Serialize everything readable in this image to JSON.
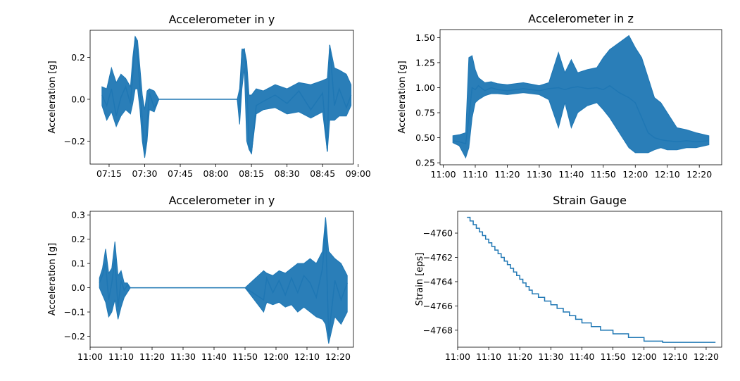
{
  "chart_data": [
    {
      "type": "line",
      "title": "Accelerometer in y",
      "xlabel": "",
      "ylabel": "Acceleration [g]",
      "x_unit": "time",
      "xlim": [
        "07:07",
        "08:58"
      ],
      "ylim": [
        -0.31,
        0.33
      ],
      "x_ticks": [
        "07:15",
        "07:30",
        "07:45",
        "08:00",
        "08:15",
        "08:30",
        "08:45",
        "09:00"
      ],
      "y_ticks": [
        -0.2,
        0.0,
        0.2
      ],
      "y_tick_labels": [
        "−0.2",
        "0.0",
        "0.2"
      ],
      "grid": false,
      "color": "#1f77b4",
      "series": [
        {
          "x": [
            "07:12",
            "07:14",
            "07:16",
            "07:18",
            "07:20",
            "07:22",
            "07:24",
            "07:25",
            "07:26",
            "07:27",
            "07:28",
            "07:29",
            "07:30",
            "07:31",
            "07:32",
            "07:34",
            "07:36",
            "07:45",
            "08:00",
            "08:09",
            "08:10",
            "08:11",
            "08:12",
            "08:13",
            "08:14",
            "08:15",
            "08:17",
            "08:20",
            "08:25",
            "08:30",
            "08:35",
            "08:40",
            "08:45",
            "08:47",
            "08:48",
            "08:50",
            "08:52",
            "08:55",
            "08:57"
          ],
          "y": [
            0.02,
            -0.03,
            0.05,
            -0.08,
            0.01,
            0.06,
            -0.02,
            0.12,
            0.3,
            0.22,
            0.05,
            -0.1,
            -0.27,
            -0.12,
            0.03,
            -0.04,
            0.0,
            0.0,
            0.0,
            0.0,
            -0.05,
            0.23,
            0.24,
            0.1,
            -0.22,
            -0.26,
            -0.03,
            -0.01,
            0.02,
            -0.02,
            0.04,
            -0.05,
            0.03,
            -0.25,
            0.26,
            -0.03,
            0.05,
            -0.04,
            0.02
          ],
          "min": [
            -0.03,
            -0.1,
            -0.06,
            -0.13,
            -0.08,
            -0.05,
            -0.07,
            -0.02,
            0.05,
            0.05,
            -0.05,
            -0.2,
            -0.28,
            -0.2,
            -0.05,
            -0.06,
            0.0,
            0.0,
            0.0,
            0.0,
            -0.12,
            0.05,
            0.15,
            -0.2,
            -0.24,
            -0.26,
            -0.07,
            -0.05,
            -0.04,
            -0.07,
            -0.06,
            -0.09,
            -0.06,
            -0.25,
            -0.1,
            -0.1,
            -0.08,
            -0.08,
            -0.03
          ],
          "max": [
            0.06,
            0.05,
            0.15,
            0.08,
            0.12,
            0.1,
            0.06,
            0.2,
            0.3,
            0.28,
            0.15,
            0.02,
            -0.05,
            0.04,
            0.05,
            0.04,
            0.0,
            0.0,
            0.0,
            0.0,
            0.05,
            0.24,
            0.24,
            0.18,
            0.02,
            0.02,
            0.05,
            0.04,
            0.07,
            0.05,
            0.08,
            0.07,
            0.09,
            0.1,
            0.26,
            0.15,
            0.14,
            0.12,
            0.07
          ]
        }
      ]
    },
    {
      "type": "line",
      "title": "Accelerometer in z",
      "xlabel": "",
      "ylabel": "Acceleration [g]",
      "x_unit": "time",
      "xlim": [
        "10:59",
        "12:27"
      ],
      "ylim": [
        0.23,
        1.58
      ],
      "x_ticks": [
        "11:00",
        "11:10",
        "11:20",
        "11:30",
        "11:40",
        "11:50",
        "12:00",
        "12:10",
        "12:20"
      ],
      "y_ticks": [
        0.25,
        0.5,
        0.75,
        1.0,
        1.25,
        1.5
      ],
      "y_tick_labels": [
        "0.25",
        "0.50",
        "0.75",
        "1.00",
        "1.25",
        "1.50"
      ],
      "grid": false,
      "color": "#1f77b4",
      "series": [
        {
          "x": [
            "11:03",
            "11:05",
            "11:07",
            "11:08",
            "11:09",
            "11:10",
            "11:11",
            "11:13",
            "11:15",
            "11:17",
            "11:20",
            "11:25",
            "11:30",
            "11:33",
            "11:36",
            "11:38",
            "11:40",
            "11:42",
            "11:45",
            "11:48",
            "11:50",
            "11:52",
            "11:55",
            "11:58",
            "12:00",
            "12:02",
            "12:04",
            "12:06",
            "12:08",
            "12:10",
            "12:13",
            "12:16",
            "12:19",
            "12:23"
          ],
          "y": [
            0.47,
            0.46,
            0.44,
            0.7,
            1.0,
            0.98,
            1.02,
            0.97,
            1.0,
            0.98,
            0.97,
            0.99,
            0.97,
            0.99,
            1.0,
            0.98,
            1.0,
            1.01,
            0.99,
            1.0,
            0.98,
            1.02,
            0.95,
            0.9,
            0.85,
            0.7,
            0.55,
            0.5,
            0.48,
            0.47,
            0.46,
            0.47,
            0.46,
            0.47
          ],
          "min": [
            0.45,
            0.42,
            0.3,
            0.4,
            0.7,
            0.85,
            0.88,
            0.92,
            0.94,
            0.94,
            0.93,
            0.95,
            0.93,
            0.88,
            0.6,
            0.85,
            0.6,
            0.75,
            0.82,
            0.85,
            0.78,
            0.7,
            0.55,
            0.4,
            0.35,
            0.35,
            0.35,
            0.38,
            0.4,
            0.38,
            0.38,
            0.4,
            0.4,
            0.43
          ],
          "max": [
            0.52,
            0.53,
            0.55,
            1.3,
            1.32,
            1.18,
            1.1,
            1.05,
            1.06,
            1.04,
            1.03,
            1.05,
            1.02,
            1.05,
            1.35,
            1.15,
            1.28,
            1.15,
            1.18,
            1.2,
            1.3,
            1.38,
            1.45,
            1.52,
            1.4,
            1.3,
            1.1,
            0.9,
            0.85,
            0.75,
            0.6,
            0.58,
            0.55,
            0.52
          ]
        }
      ]
    },
    {
      "type": "line",
      "title": "Accelerometer in y",
      "xlabel": "",
      "ylabel": "Acceleration [g]",
      "x_unit": "time",
      "xlim": [
        "11:00",
        "12:25"
      ],
      "ylim": [
        -0.245,
        0.315
      ],
      "x_ticks": [
        "11:00",
        "11:10",
        "11:20",
        "11:30",
        "11:40",
        "11:50",
        "12:00",
        "12:10",
        "12:20"
      ],
      "y_ticks": [
        -0.2,
        -0.1,
        0.0,
        0.1,
        0.2,
        0.3
      ],
      "y_tick_labels": [
        "−0.2",
        "−0.1",
        "0.0",
        "0.1",
        "0.2",
        "0.3"
      ],
      "grid": false,
      "color": "#1f77b4",
      "series": [
        {
          "x": [
            "11:03",
            "11:04",
            "11:05",
            "11:06",
            "11:07",
            "11:08",
            "11:09",
            "11:10",
            "11:11",
            "11:12",
            "11:13",
            "11:20",
            "11:30",
            "11:40",
            "11:50",
            "11:56",
            "11:57",
            "11:59",
            "12:01",
            "12:03",
            "12:05",
            "12:07",
            "12:09",
            "12:11",
            "12:13",
            "12:15",
            "12:16",
            "12:17",
            "12:19",
            "12:21",
            "12:23"
          ],
          "y": [
            0.02,
            0.05,
            0.1,
            -0.05,
            0.02,
            0.12,
            -0.08,
            0.03,
            -0.01,
            0.01,
            0.0,
            0.0,
            0.0,
            0.0,
            0.0,
            -0.05,
            0.04,
            -0.02,
            0.03,
            -0.03,
            0.04,
            -0.02,
            0.05,
            0.02,
            -0.04,
            0.08,
            0.25,
            -0.2,
            0.03,
            -0.05,
            0.02
          ],
          "min": [
            0.0,
            -0.03,
            -0.06,
            -0.12,
            -0.1,
            -0.05,
            -0.13,
            -0.08,
            -0.04,
            -0.02,
            0.0,
            0.0,
            0.0,
            0.0,
            0.0,
            -0.1,
            -0.06,
            -0.07,
            -0.06,
            -0.08,
            -0.07,
            -0.1,
            -0.08,
            -0.1,
            -0.12,
            -0.13,
            -0.15,
            -0.23,
            -0.12,
            -0.15,
            -0.1
          ],
          "max": [
            0.04,
            0.08,
            0.16,
            0.06,
            0.08,
            0.19,
            0.05,
            0.07,
            0.02,
            0.02,
            0.0,
            0.0,
            0.0,
            0.0,
            0.0,
            0.07,
            0.06,
            0.05,
            0.07,
            0.06,
            0.08,
            0.1,
            0.1,
            0.12,
            0.1,
            0.15,
            0.29,
            0.15,
            0.12,
            0.1,
            0.05
          ]
        }
      ]
    },
    {
      "type": "line",
      "title": "Strain Gauge",
      "xlabel": "",
      "ylabel": "Strain [eps]",
      "x_unit": "time",
      "xlim": [
        "11:00",
        "12:25"
      ],
      "ylim": [
        -4769.4,
        -4758.2
      ],
      "x_ticks": [
        "11:00",
        "11:10",
        "11:20",
        "11:30",
        "11:40",
        "11:50",
        "12:00",
        "12:10",
        "12:20"
      ],
      "y_ticks": [
        -4760,
        -4762,
        -4764,
        -4766,
        -4768
      ],
      "y_tick_labels": [
        "−4760",
        "−4762",
        "−4764",
        "−4766",
        "−4768"
      ],
      "grid": false,
      "color": "#1f77b4",
      "step": true,
      "series": [
        {
          "x": [
            "11:03",
            "11:04",
            "11:05",
            "11:06",
            "11:07",
            "11:08",
            "11:09",
            "11:10",
            "11:11",
            "11:12",
            "11:13",
            "11:14",
            "11:15",
            "11:16",
            "11:17",
            "11:18",
            "11:19",
            "11:20",
            "11:21",
            "11:22",
            "11:23",
            "11:24",
            "11:26",
            "11:28",
            "11:30",
            "11:32",
            "11:34",
            "11:36",
            "11:38",
            "11:40",
            "11:43",
            "11:46",
            "11:50",
            "11:55",
            "12:00",
            "12:06",
            "12:17",
            "12:23"
          ],
          "y": [
            -4758.7,
            -4759.0,
            -4759.3,
            -4759.6,
            -4759.9,
            -4760.2,
            -4760.5,
            -4760.8,
            -4761.1,
            -4761.4,
            -4761.7,
            -4762.0,
            -4762.3,
            -4762.6,
            -4762.9,
            -4763.2,
            -4763.5,
            -4763.8,
            -4764.1,
            -4764.4,
            -4764.7,
            -4765.0,
            -4765.3,
            -4765.6,
            -4765.9,
            -4766.2,
            -4766.5,
            -4766.8,
            -4767.1,
            -4767.4,
            -4767.7,
            -4768.0,
            -4768.3,
            -4768.6,
            -4768.9,
            -4769.0,
            -4769.0,
            -4769.0
          ]
        }
      ]
    }
  ]
}
